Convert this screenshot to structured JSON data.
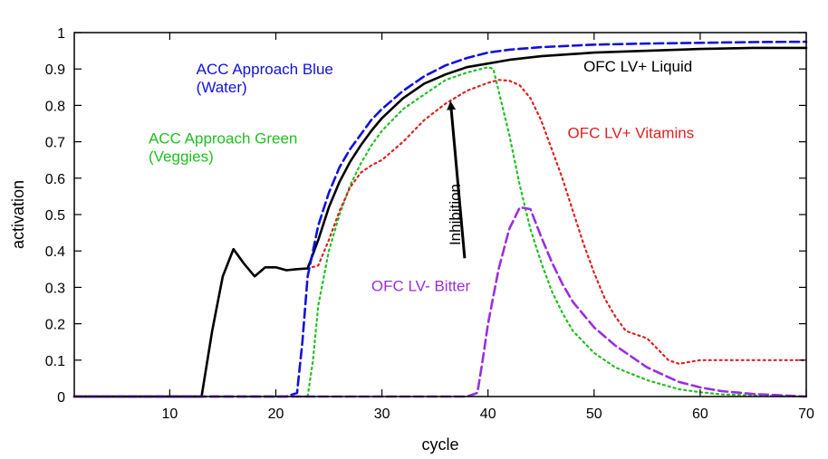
{
  "chart_data": {
    "type": "line",
    "title": "",
    "xlabel": "cycle",
    "ylabel": "activation",
    "xlim": [
      1,
      70
    ],
    "ylim": [
      0,
      1
    ],
    "xticks": [
      10,
      20,
      30,
      40,
      50,
      60,
      70
    ],
    "yticks": [
      0,
      0.1,
      0.2,
      0.3,
      0.4,
      0.5,
      0.6,
      0.7,
      0.8,
      0.9,
      1
    ],
    "grid": false,
    "legend": "none",
    "series": [
      {
        "name": "OFC LV+ Liquid",
        "color": "#000000",
        "style": "solid",
        "x": [
          1,
          5,
          10,
          13,
          14,
          15,
          16,
          17,
          18,
          19,
          20,
          21,
          22,
          23,
          24,
          25,
          26,
          27,
          28,
          29,
          30,
          32,
          34,
          36,
          38,
          40,
          42,
          45,
          50,
          55,
          60,
          65,
          70
        ],
        "y": [
          0,
          0,
          0,
          0,
          0.18,
          0.33,
          0.405,
          0.365,
          0.33,
          0.355,
          0.355,
          0.347,
          0.35,
          0.352,
          0.43,
          0.52,
          0.59,
          0.645,
          0.69,
          0.73,
          0.765,
          0.82,
          0.86,
          0.885,
          0.905,
          0.915,
          0.925,
          0.935,
          0.945,
          0.95,
          0.955,
          0.958,
          0.958
        ]
      },
      {
        "name": "OFC LV+ Vitamins",
        "color": "#e02020",
        "style": "dotted",
        "x": [
          1,
          5,
          10,
          13,
          14,
          15,
          16,
          17,
          18,
          19,
          20,
          21,
          22,
          23,
          24,
          25,
          26,
          27,
          28,
          29,
          30,
          32,
          34,
          36,
          38,
          40,
          41,
          42,
          43,
          44,
          45,
          46,
          47,
          48,
          49,
          50,
          51,
          52,
          53,
          54,
          55,
          56,
          57,
          58,
          59,
          60,
          62,
          65,
          68,
          70
        ],
        "y": [
          0,
          0,
          0,
          0,
          0.18,
          0.33,
          0.405,
          0.365,
          0.33,
          0.355,
          0.355,
          0.347,
          0.35,
          0.352,
          0.36,
          0.43,
          0.51,
          0.575,
          0.615,
          0.635,
          0.65,
          0.7,
          0.76,
          0.805,
          0.84,
          0.862,
          0.87,
          0.868,
          0.855,
          0.82,
          0.76,
          0.68,
          0.6,
          0.51,
          0.42,
          0.34,
          0.27,
          0.22,
          0.18,
          0.17,
          0.16,
          0.13,
          0.1,
          0.09,
          0.095,
          0.1,
          0.1,
          0.1,
          0.1,
          0.1
        ]
      },
      {
        "name": "ACC Approach Blue (Water)",
        "color": "#1010e0",
        "style": "dashed",
        "x": [
          1,
          10,
          20,
          21,
          22,
          22.5,
          23,
          24,
          25,
          26,
          27,
          28,
          29,
          30,
          32,
          34,
          36,
          38,
          40,
          42,
          45,
          50,
          55,
          60,
          65,
          70
        ],
        "y": [
          0,
          0,
          0,
          0,
          0.01,
          0.15,
          0.33,
          0.47,
          0.56,
          0.63,
          0.68,
          0.72,
          0.76,
          0.79,
          0.84,
          0.88,
          0.91,
          0.93,
          0.945,
          0.953,
          0.96,
          0.967,
          0.97,
          0.972,
          0.974,
          0.975
        ]
      },
      {
        "name": "ACC Approach Green (Veggies)",
        "color": "#20c020",
        "style": "dotted",
        "x": [
          1,
          10,
          20,
          22,
          23,
          23.5,
          24,
          25,
          26,
          27,
          28,
          29,
          30,
          32,
          34,
          36,
          38,
          40,
          40.5,
          41,
          42,
          43,
          44,
          45,
          46,
          47,
          48,
          50,
          52,
          55,
          58,
          60,
          62,
          65,
          70
        ],
        "y": [
          0,
          0,
          0,
          0,
          0,
          0.1,
          0.25,
          0.4,
          0.5,
          0.58,
          0.64,
          0.69,
          0.73,
          0.79,
          0.83,
          0.87,
          0.89,
          0.905,
          0.9,
          0.84,
          0.72,
          0.58,
          0.46,
          0.37,
          0.29,
          0.23,
          0.18,
          0.12,
          0.08,
          0.045,
          0.02,
          0.012,
          0.006,
          0.003,
          0
        ]
      },
      {
        "name": "OFC LV- Bitter",
        "color": "#9a2ee0",
        "style": "dashed",
        "x": [
          1,
          10,
          20,
          30,
          38,
          39,
          39.5,
          40,
          41,
          42,
          43,
          44,
          45,
          46,
          47,
          48,
          50,
          52,
          55,
          58,
          60,
          62,
          65,
          70
        ],
        "y": [
          0,
          0,
          0,
          0,
          0,
          0.01,
          0.1,
          0.2,
          0.35,
          0.46,
          0.52,
          0.515,
          0.44,
          0.37,
          0.31,
          0.26,
          0.19,
          0.14,
          0.08,
          0.04,
          0.025,
          0.015,
          0.007,
          0
        ]
      }
    ],
    "annotations": [
      {
        "lines": [
          "ACC Approach Blue",
          "(Water)"
        ],
        "color": "#1010e0",
        "x": 12.5,
        "y": 0.885
      },
      {
        "lines": [
          "ACC Approach Green",
          "(Veggies)"
        ],
        "color": "#20c020",
        "x": 8,
        "y": 0.695
      },
      {
        "lines": [
          "OFC LV+ Liquid"
        ],
        "color": "#000000",
        "x": 49,
        "y": 0.893
      },
      {
        "lines": [
          "OFC LV+ Vitamins"
        ],
        "color": "#e02020",
        "x": 47.5,
        "y": 0.71
      },
      {
        "lines": [
          "OFC LV- Bitter"
        ],
        "color": "#9a2ee0",
        "x": 29,
        "y": 0.29
      },
      {
        "lines": [
          "Inhibition"
        ],
        "color": "#000000",
        "x": 37.4,
        "y": 0.5,
        "rotate": -90
      }
    ],
    "arrow": {
      "label": "Inhibition",
      "from": [
        37.8,
        0.38
      ],
      "to": [
        36.5,
        0.8
      ],
      "color": "#000000"
    }
  }
}
